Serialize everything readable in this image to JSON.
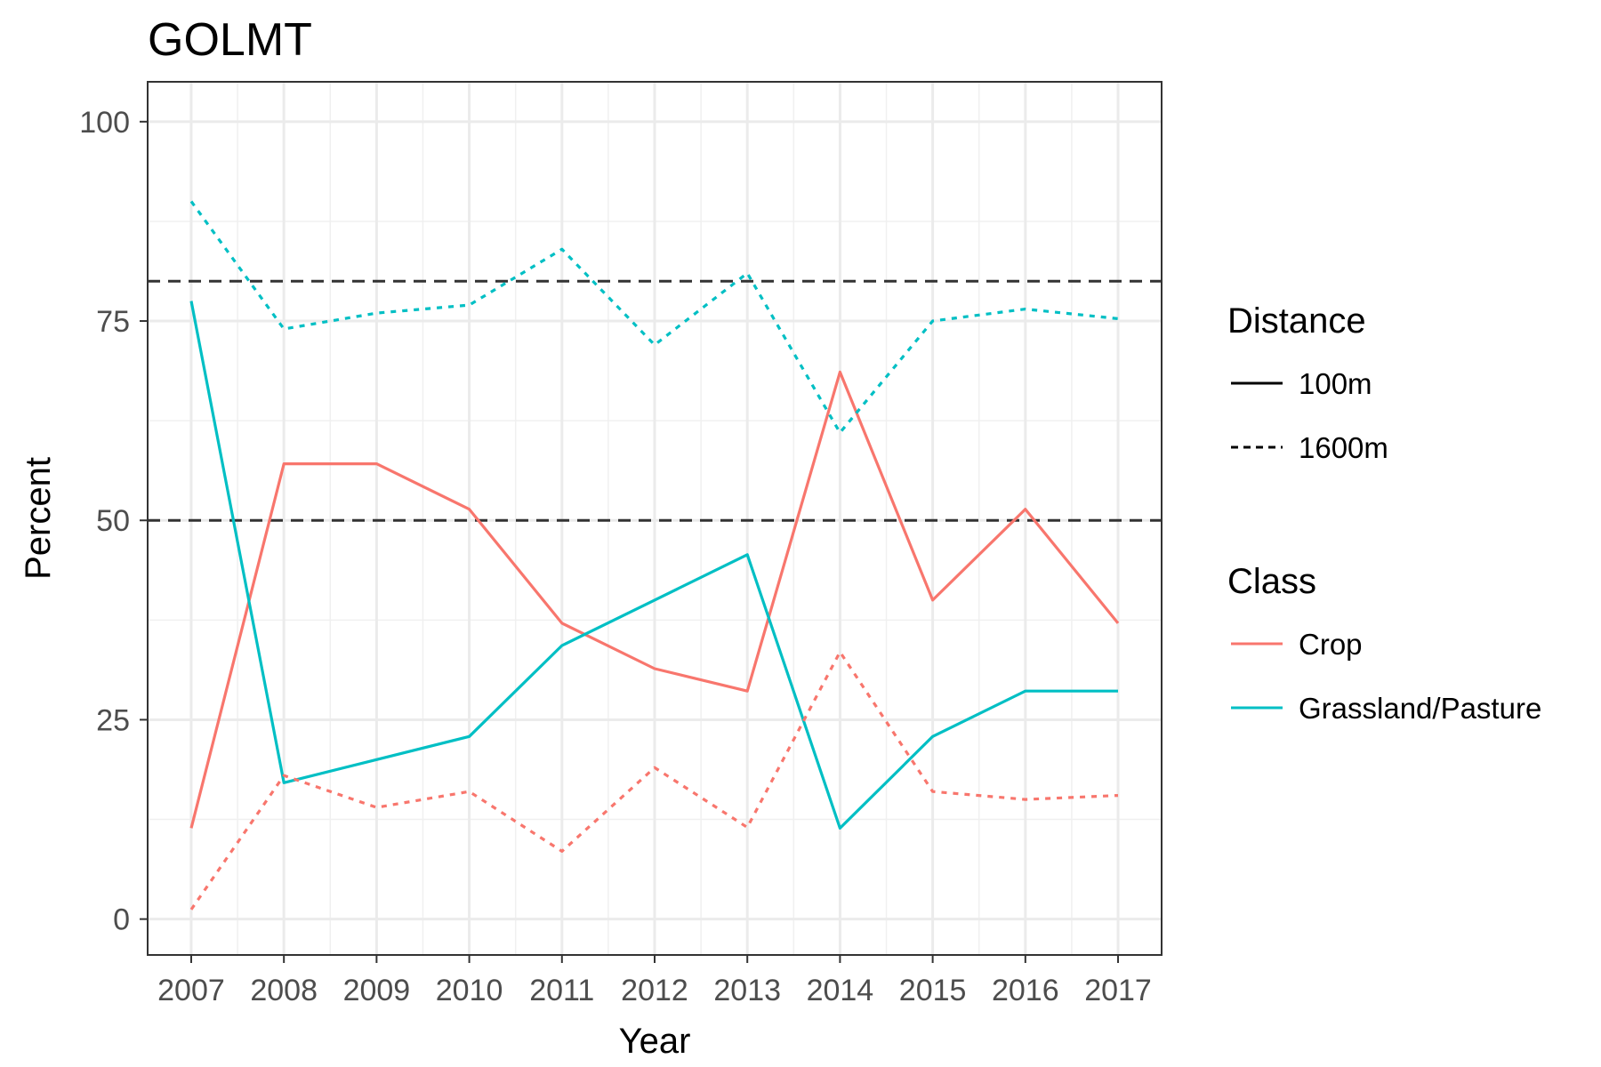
{
  "chart_data": {
    "type": "line",
    "title": "GOLMT",
    "xlabel": "Year",
    "ylabel": "Percent",
    "x": [
      2007,
      2008,
      2009,
      2010,
      2011,
      2012,
      2013,
      2014,
      2015,
      2016,
      2017
    ],
    "ylim": [
      -4.5,
      105
    ],
    "yticks": [
      0,
      25,
      50,
      75,
      100
    ],
    "grid": true,
    "reference_lines": [
      50,
      80
    ],
    "series": [
      {
        "name": "Crop",
        "distance": "100m",
        "color": "#F8766D",
        "dash": "solid",
        "values": [
          11.4,
          57.1,
          57.1,
          51.4,
          37.1,
          31.4,
          28.6,
          68.6,
          40.0,
          51.4,
          37.1
        ]
      },
      {
        "name": "Grassland/Pasture",
        "distance": "100m",
        "color": "#00BFC4",
        "dash": "solid",
        "values": [
          77.5,
          17.1,
          20.0,
          22.9,
          34.3,
          40.0,
          45.7,
          11.4,
          22.9,
          28.6,
          28.6
        ]
      },
      {
        "name": "Crop",
        "distance": "1600m",
        "color": "#F8766D",
        "dash": "dotted",
        "values": [
          1.2,
          18.0,
          14.0,
          16.0,
          8.5,
          19.0,
          11.5,
          33.5,
          16.0,
          15.0,
          15.5
        ]
      },
      {
        "name": "Grassland/Pasture",
        "distance": "1600m",
        "color": "#00BFC4",
        "dash": "dotted",
        "values": [
          90.0,
          74.0,
          76.0,
          77.0,
          84.0,
          72.0,
          81.0,
          61.0,
          75.0,
          76.5,
          75.3
        ]
      }
    ],
    "legend": {
      "placement": "right",
      "distance_title": "Distance",
      "distance_items": [
        {
          "label": "100m",
          "dash": "solid"
        },
        {
          "label": "1600m",
          "dash": "dotted"
        }
      ],
      "class_title": "Class",
      "class_items": [
        {
          "label": "Crop",
          "color": "#F8766D"
        },
        {
          "label": "Grassland/Pasture",
          "color": "#00BFC4"
        }
      ]
    }
  }
}
